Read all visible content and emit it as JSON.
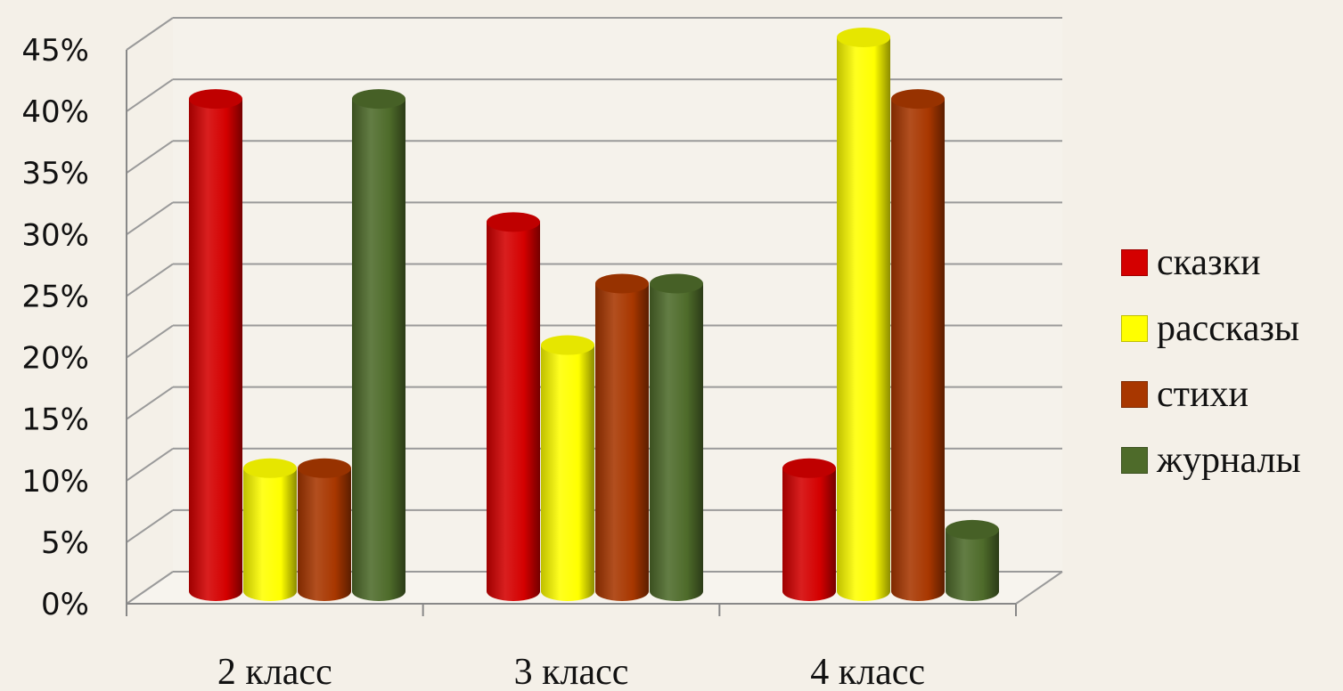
{
  "chart_data": {
    "type": "bar",
    "title": "",
    "xlabel": "",
    "ylabel": "",
    "categories": [
      "2 класс",
      "3 класс",
      "4 класс"
    ],
    "series": [
      {
        "name": "сказки",
        "color": "#d40000",
        "values": [
          40,
          30,
          10
        ]
      },
      {
        "name": "рассказы",
        "color": "#ffff00",
        "values": [
          10,
          20,
          45
        ]
      },
      {
        "name": "стихи",
        "color": "#a83700",
        "values": [
          10,
          25,
          40
        ]
      },
      {
        "name": "журналы",
        "color": "#4e6b2a",
        "values": [
          40,
          25,
          5
        ]
      }
    ],
    "ylim": [
      0,
      45
    ],
    "y_ticks": [
      "0%",
      "5%",
      "10%",
      "15%",
      "20%",
      "25%",
      "30%",
      "35%",
      "40%",
      "45%"
    ],
    "grid": true,
    "legend_placement": "right",
    "style": "3d-cylinder"
  }
}
